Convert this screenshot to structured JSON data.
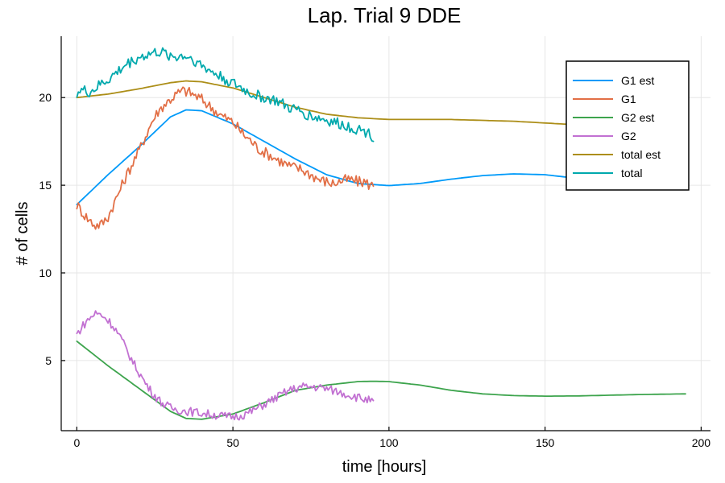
{
  "chart_data": {
    "type": "line",
    "title": "Lap. Trial 9 DDE",
    "xlabel": "time [hours]",
    "ylabel": "# of cells",
    "xlim": [
      -5,
      203
    ],
    "ylim": [
      1,
      23.5
    ],
    "xticks": [
      0,
      50,
      100,
      150,
      200
    ],
    "yticks": [
      5,
      10,
      15,
      20
    ],
    "grid": true,
    "legend_position": "top-right",
    "series": [
      {
        "name": "G1 est",
        "color": "#009af9",
        "style": "smooth",
        "x": [
          0,
          10,
          20,
          30,
          35,
          40,
          50,
          60,
          70,
          80,
          90,
          100,
          110,
          120,
          130,
          140,
          150,
          160,
          170,
          180,
          195
        ],
        "y": [
          13.9,
          15.6,
          17.2,
          18.9,
          19.3,
          19.25,
          18.5,
          17.5,
          16.5,
          15.6,
          15.1,
          14.98,
          15.1,
          15.35,
          15.55,
          15.65,
          15.6,
          15.4,
          15.1,
          14.9,
          14.85
        ]
      },
      {
        "name": "G1",
        "color": "#e26f46",
        "style": "noisy",
        "x": [
          0,
          2,
          4,
          6,
          8,
          10,
          12,
          14,
          16,
          18,
          20,
          22,
          24,
          26,
          28,
          30,
          32,
          34,
          36,
          38,
          40,
          42,
          44,
          46,
          48,
          50,
          52,
          54,
          56,
          58,
          60,
          62,
          64,
          66,
          68,
          70,
          72,
          74,
          76,
          78,
          80,
          82,
          84,
          86,
          88,
          90,
          92,
          94,
          95
        ],
        "y": [
          13.9,
          13.4,
          13.0,
          12.7,
          12.8,
          13.2,
          14.0,
          14.8,
          15.6,
          16.3,
          17.0,
          17.8,
          18.6,
          19.2,
          19.6,
          19.9,
          20.2,
          20.4,
          20.3,
          20.1,
          19.9,
          19.6,
          19.3,
          19.0,
          18.8,
          18.6,
          18.2,
          17.8,
          17.5,
          17.1,
          16.9,
          16.7,
          16.5,
          16.3,
          16.1,
          16.0,
          15.9,
          15.7,
          15.5,
          15.3,
          15.2,
          15.1,
          15.2,
          15.3,
          15.3,
          15.2,
          15.2,
          15.0,
          15.0
        ]
      },
      {
        "name": "G2 est",
        "color": "#3da44d",
        "style": "smooth",
        "x": [
          0,
          10,
          20,
          30,
          35,
          40,
          50,
          60,
          70,
          80,
          90,
          95,
          100,
          110,
          120,
          130,
          140,
          150,
          160,
          170,
          180,
          195
        ],
        "y": [
          6.1,
          4.7,
          3.4,
          2.1,
          1.7,
          1.65,
          1.95,
          2.6,
          3.3,
          3.6,
          3.8,
          3.82,
          3.8,
          3.6,
          3.3,
          3.1,
          3.0,
          2.97,
          2.98,
          3.02,
          3.06,
          3.1
        ]
      },
      {
        "name": "G2",
        "color": "#c271d2",
        "style": "noisy",
        "x": [
          0,
          2,
          4,
          6,
          8,
          10,
          12,
          14,
          16,
          18,
          20,
          22,
          24,
          26,
          28,
          30,
          32,
          34,
          36,
          38,
          40,
          42,
          44,
          46,
          48,
          50,
          52,
          54,
          56,
          58,
          60,
          62,
          64,
          66,
          68,
          70,
          72,
          74,
          76,
          78,
          80,
          82,
          84,
          86,
          88,
          90,
          92,
          94,
          95
        ],
        "y": [
          6.5,
          7.0,
          7.4,
          7.7,
          7.6,
          7.3,
          6.9,
          6.3,
          5.6,
          4.9,
          4.3,
          3.7,
          3.2,
          2.8,
          2.5,
          2.3,
          2.2,
          2.15,
          2.1,
          2.05,
          2.0,
          1.95,
          1.9,
          1.85,
          1.8,
          1.8,
          1.85,
          1.95,
          2.1,
          2.3,
          2.5,
          2.7,
          2.9,
          3.1,
          3.3,
          3.4,
          3.5,
          3.5,
          3.5,
          3.45,
          3.4,
          3.3,
          3.2,
          3.1,
          3.0,
          2.9,
          2.8,
          2.7,
          2.6
        ]
      },
      {
        "name": "total est",
        "color": "#ac8e18",
        "style": "smooth",
        "x": [
          0,
          10,
          20,
          30,
          35,
          40,
          50,
          60,
          70,
          80,
          90,
          100,
          110,
          120,
          130,
          140,
          150,
          160,
          170,
          180,
          195
        ],
        "y": [
          20.0,
          20.2,
          20.5,
          20.85,
          20.95,
          20.9,
          20.55,
          20.0,
          19.45,
          19.05,
          18.85,
          18.75,
          18.75,
          18.75,
          18.7,
          18.65,
          18.55,
          18.45,
          18.3,
          18.1,
          17.9
        ]
      },
      {
        "name": "total",
        "color": "#00a9ad",
        "style": "noisy",
        "x": [
          0,
          2,
          4,
          6,
          8,
          10,
          12,
          14,
          16,
          18,
          20,
          22,
          24,
          26,
          28,
          30,
          32,
          34,
          36,
          38,
          40,
          42,
          44,
          46,
          48,
          50,
          52,
          54,
          56,
          58,
          60,
          62,
          64,
          66,
          68,
          70,
          72,
          74,
          76,
          78,
          80,
          82,
          84,
          86,
          88,
          90,
          92,
          94,
          95
        ],
        "y": [
          20.3,
          20.4,
          20.3,
          20.5,
          20.8,
          21.0,
          21.3,
          21.6,
          21.9,
          22.1,
          22.3,
          22.4,
          22.5,
          22.6,
          22.5,
          22.4,
          22.3,
          22.4,
          22.3,
          22.1,
          21.8,
          21.6,
          21.4,
          21.2,
          21.0,
          20.8,
          20.6,
          20.4,
          20.2,
          20.1,
          20.0,
          19.9,
          19.8,
          19.6,
          19.4,
          19.3,
          19.2,
          19.0,
          18.9,
          18.8,
          18.7,
          18.6,
          18.5,
          18.4,
          18.3,
          18.2,
          18.1,
          17.9,
          17.8
        ]
      }
    ]
  }
}
